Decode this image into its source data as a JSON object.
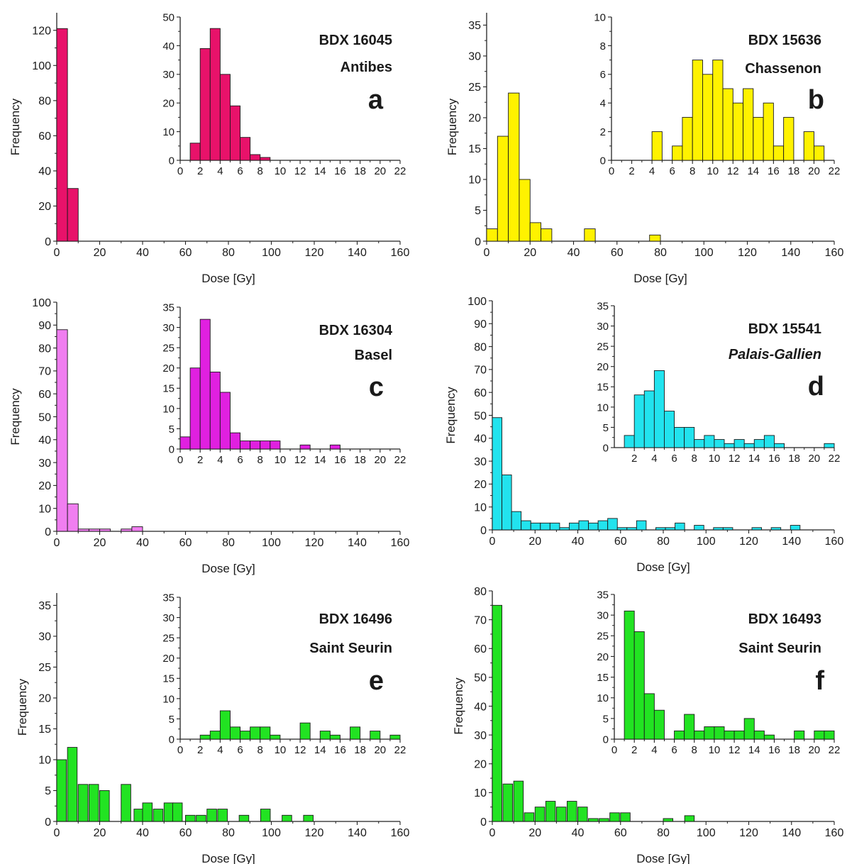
{
  "figure": {
    "x_label": "Dose [Gy]",
    "y_label": "Frequency"
  },
  "chart_data": [
    {
      "type": "bar",
      "panel": "a",
      "sample": "BDX 16045",
      "site": "Antibes",
      "site_italic": false,
      "color": "#e8126a",
      "xlabel": "Dose [Gy]",
      "ylabel": "Frequency",
      "xlim": [
        0,
        160
      ],
      "ylim": [
        0,
        130
      ],
      "xticks": [
        0,
        20,
        40,
        60,
        80,
        100,
        120,
        140,
        160
      ],
      "yticks": [
        0,
        20,
        40,
        60,
        80,
        100,
        120
      ],
      "bin_width": 5,
      "x": [
        0,
        5
      ],
      "values": [
        121,
        30
      ],
      "inset": {
        "xlim": [
          0,
          22
        ],
        "ylim": [
          0,
          50
        ],
        "xticks": [
          0,
          2,
          4,
          6,
          8,
          10,
          12,
          14,
          16,
          18,
          20,
          22
        ],
        "yticks": [
          0,
          10,
          20,
          30,
          40,
          50
        ],
        "bin_width": 1,
        "x": [
          1,
          2,
          3,
          4,
          5,
          6,
          7,
          8
        ],
        "values": [
          6,
          39,
          46,
          30,
          19,
          8,
          2,
          1
        ]
      }
    },
    {
      "type": "bar",
      "panel": "b",
      "sample": "BDX 15636",
      "site": "Chassenon",
      "site_italic": false,
      "color": "#fff200",
      "xlabel": "Dose [Gy]",
      "ylabel": "Frequency",
      "xlim": [
        0,
        160
      ],
      "ylim": [
        0,
        37
      ],
      "xticks": [
        0,
        20,
        40,
        60,
        80,
        100,
        120,
        140,
        160
      ],
      "yticks": [
        0,
        5,
        10,
        15,
        20,
        25,
        30,
        35
      ],
      "bin_width": 5,
      "x": [
        0,
        5,
        10,
        15,
        20,
        25,
        45,
        75
      ],
      "values": [
        2,
        17,
        24,
        10,
        3,
        2,
        2,
        1
      ],
      "inset": {
        "xlim": [
          0,
          22
        ],
        "ylim": [
          0,
          10
        ],
        "xticks": [
          0,
          2,
          4,
          6,
          8,
          10,
          12,
          14,
          16,
          18,
          20,
          22
        ],
        "yticks": [
          0,
          2,
          4,
          6,
          8,
          10
        ],
        "bin_width": 1,
        "x": [
          4,
          6,
          7,
          8,
          9,
          10,
          11,
          12,
          13,
          14,
          15,
          16,
          17,
          19,
          20
        ],
        "values": [
          2,
          1,
          3,
          7,
          6,
          7,
          5,
          4,
          5,
          3,
          4,
          1,
          3,
          2,
          1
        ]
      }
    },
    {
      "type": "bar",
      "panel": "c",
      "sample": "BDX 16304",
      "site": "Basel",
      "site_italic": false,
      "color": "#f07ef0",
      "xlabel": "Dose [Gy]",
      "ylabel": "Frequency",
      "xlim": [
        0,
        160
      ],
      "ylim": [
        0,
        100
      ],
      "xticks": [
        0,
        20,
        40,
        60,
        80,
        100,
        120,
        140,
        160
      ],
      "yticks": [
        0,
        10,
        20,
        30,
        40,
        50,
        60,
        70,
        80,
        90,
        100
      ],
      "bin_width": 5,
      "x": [
        0,
        5,
        10,
        15,
        20,
        30,
        35
      ],
      "values": [
        88,
        12,
        1,
        1,
        1,
        1,
        2
      ],
      "inset": {
        "color": "#e020e0",
        "xlim": [
          0,
          22
        ],
        "ylim": [
          0,
          35
        ],
        "xticks": [
          0,
          2,
          4,
          6,
          8,
          10,
          12,
          14,
          16,
          18,
          20,
          22
        ],
        "yticks": [
          0,
          5,
          10,
          15,
          20,
          25,
          30,
          35
        ],
        "bin_width": 1,
        "x": [
          0,
          1,
          2,
          3,
          4,
          5,
          6,
          7,
          8,
          9,
          12,
          15
        ],
        "values": [
          3,
          20,
          32,
          19,
          14,
          4,
          2,
          2,
          2,
          2,
          1,
          1
        ]
      }
    },
    {
      "type": "bar",
      "panel": "d",
      "sample": "BDX 15541",
      "site": "Palais-Gallien",
      "site_italic": true,
      "color": "#22e3ee",
      "xlabel": "Dose [Gy]",
      "ylabel": "Frequency",
      "xlim": [
        0,
        160
      ],
      "ylim": [
        0,
        100
      ],
      "xticks": [
        0,
        20,
        40,
        60,
        80,
        100,
        120,
        140,
        160
      ],
      "yticks": [
        0,
        10,
        20,
        30,
        40,
        50,
        60,
        70,
        80,
        90,
        100
      ],
      "bin_width": 4.5,
      "x": [
        0,
        4.5,
        9,
        13.5,
        18,
        22.5,
        27,
        31.5,
        36,
        40.5,
        45,
        49.5,
        54,
        58.5,
        63,
        67.5,
        76.5,
        81,
        85.5,
        94.5,
        103.5,
        108,
        121.5,
        130.5,
        139.5
      ],
      "values": [
        49,
        24,
        8,
        4,
        3,
        3,
        3,
        1,
        3,
        4,
        3,
        4,
        5,
        1,
        1,
        4,
        1,
        1,
        3,
        2,
        1,
        1,
        1,
        1,
        2
      ],
      "inset": {
        "xlim": [
          0,
          22
        ],
        "ylim": [
          0,
          35
        ],
        "xticks": [
          2,
          4,
          6,
          8,
          10,
          12,
          14,
          16,
          18,
          20,
          22
        ],
        "yticks": [
          0,
          5,
          10,
          15,
          20,
          25,
          30,
          35
        ],
        "bin_width": 1,
        "x": [
          1,
          2,
          3,
          4,
          5,
          6,
          7,
          8,
          9,
          10,
          11,
          12,
          13,
          14,
          15,
          16,
          21
        ],
        "values": [
          3,
          13,
          14,
          19,
          9,
          5,
          5,
          2,
          3,
          2,
          1,
          2,
          1,
          2,
          3,
          1,
          1
        ]
      }
    },
    {
      "type": "bar",
      "panel": "e",
      "sample": "BDX 16496",
      "site": "Saint Seurin",
      "site_italic": false,
      "color": "#22e322",
      "xlabel": "Dose [Gy]",
      "ylabel": "Frequency",
      "xlim": [
        0,
        160
      ],
      "ylim": [
        0,
        37
      ],
      "xticks": [
        0,
        20,
        40,
        60,
        80,
        100,
        120,
        140,
        160
      ],
      "yticks": [
        0,
        5,
        10,
        15,
        20,
        25,
        30,
        35
      ],
      "bin_width": 4.5,
      "x": [
        0,
        5,
        10,
        15,
        20,
        30,
        36,
        40,
        45,
        50,
        54,
        60,
        65,
        70,
        75,
        85,
        95,
        105,
        115
      ],
      "values": [
        10,
        12,
        6,
        6,
        5,
        6,
        2,
        3,
        2,
        3,
        3,
        1,
        1,
        2,
        2,
        1,
        2,
        1,
        1
      ],
      "inset": {
        "xlim": [
          0,
          22
        ],
        "ylim": [
          0,
          35
        ],
        "xticks": [
          0,
          2,
          4,
          6,
          8,
          10,
          12,
          14,
          16,
          18,
          20,
          22
        ],
        "yticks": [
          0,
          5,
          10,
          15,
          20,
          25,
          30,
          35
        ],
        "bin_width": 1,
        "x": [
          2,
          3,
          4,
          5,
          6,
          7,
          8,
          9,
          12,
          14,
          15,
          17,
          19,
          21
        ],
        "values": [
          1,
          2,
          7,
          3,
          2,
          3,
          3,
          1,
          4,
          2,
          1,
          3,
          2,
          1
        ]
      }
    },
    {
      "type": "bar",
      "panel": "f",
      "sample": "BDX 16493",
      "site": "Saint Seurin",
      "site_italic": false,
      "color": "#22e322",
      "xlabel": "Dose [Gy]",
      "ylabel": "Frequency",
      "xlim": [
        0,
        160
      ],
      "ylim": [
        0,
        80
      ],
      "xticks": [
        0,
        20,
        40,
        60,
        80,
        100,
        120,
        140,
        160
      ],
      "yticks": [
        0,
        10,
        20,
        30,
        40,
        50,
        60,
        70,
        80
      ],
      "bin_width": 4.5,
      "x": [
        0,
        5,
        10,
        15,
        20,
        25,
        30,
        35,
        40,
        45,
        50,
        55,
        60,
        80,
        90
      ],
      "values": [
        75,
        13,
        14,
        3,
        5,
        7,
        5,
        7,
        5,
        1,
        1,
        3,
        3,
        1,
        2
      ],
      "inset": {
        "xlim": [
          0,
          22
        ],
        "ylim": [
          0,
          35
        ],
        "xticks": [
          0,
          2,
          4,
          6,
          8,
          10,
          12,
          14,
          16,
          18,
          20,
          22
        ],
        "yticks": [
          0,
          5,
          10,
          15,
          20,
          25,
          30,
          35
        ],
        "bin_width": 1,
        "x": [
          1,
          2,
          3,
          4,
          6,
          7,
          8,
          9,
          10,
          11,
          12,
          13,
          14,
          15,
          18,
          20,
          21
        ],
        "values": [
          31,
          26,
          11,
          7,
          2,
          6,
          2,
          3,
          3,
          2,
          2,
          5,
          2,
          1,
          2,
          2,
          2
        ]
      }
    }
  ]
}
